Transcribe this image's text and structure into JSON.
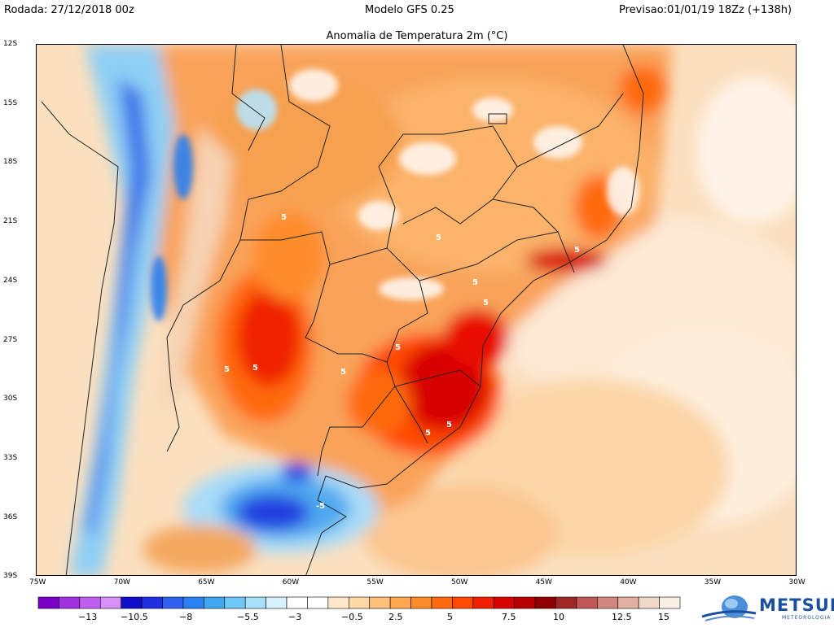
{
  "header": {
    "left": "Rodada: 27/12/2018 00z",
    "center": "Modelo GFS 0.25",
    "right": "Previsao:01/01/19 18Zz (+138h)"
  },
  "map": {
    "title": "Anomalia de Temperatura 2m (°C)",
    "lat_labels": [
      "12S",
      "15S",
      "18S",
      "21S",
      "24S",
      "27S",
      "30S",
      "33S",
      "36S",
      "39S"
    ],
    "lon_labels": [
      "75W",
      "70W",
      "65W",
      "60W",
      "55W",
      "50W",
      "45W",
      "40W",
      "35W",
      "30W"
    ],
    "contour_labels": [
      "5",
      "5",
      "5",
      "5",
      "5",
      "5",
      "5",
      "5",
      "5",
      "5",
      "5",
      "-5"
    ]
  },
  "colorbar": {
    "colors": [
      "#7a00c8",
      "#a030e0",
      "#c060f0",
      "#d890f8",
      "#1010c8",
      "#2030e0",
      "#3060f0",
      "#2a80f0",
      "#40a8f0",
      "#70c8f8",
      "#a8e0fa",
      "#d8f2ff",
      "#ffffff",
      "#ffffff",
      "#ffe8cc",
      "#ffd8a8",
      "#ffc07c",
      "#ffa850",
      "#ff8c2a",
      "#ff6a10",
      "#ff4a00",
      "#f02000",
      "#d80000",
      "#b80000",
      "#900000",
      "#a02828",
      "#c05858",
      "#d08880",
      "#e0b0a0",
      "#efd8c8",
      "#f8f0e4"
    ],
    "labels": [
      "−13",
      "−10.5",
      "−8",
      "−5.5",
      "−3",
      "−0.5",
      "2.5",
      "5",
      "7.5",
      "10",
      "12.5",
      "15"
    ]
  },
  "logo": {
    "name": "METSUL",
    "subtitle": "METEOROLOGIA"
  }
}
